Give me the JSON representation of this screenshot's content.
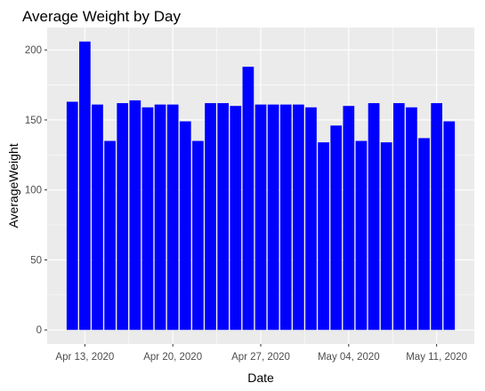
{
  "chart_data": {
    "type": "bar",
    "title": "Average Weight by Day",
    "xlabel": "Date",
    "ylabel": "AverageWeight",
    "x": [
      "2020-04-12",
      "2020-04-13",
      "2020-04-14",
      "2020-04-15",
      "2020-04-16",
      "2020-04-17",
      "2020-04-18",
      "2020-04-19",
      "2020-04-20",
      "2020-04-21",
      "2020-04-22",
      "2020-04-23",
      "2020-04-24",
      "2020-04-25",
      "2020-04-26",
      "2020-04-27",
      "2020-04-28",
      "2020-04-29",
      "2020-04-30",
      "2020-05-01",
      "2020-05-02",
      "2020-05-03",
      "2020-05-04",
      "2020-05-05",
      "2020-05-06",
      "2020-05-07",
      "2020-05-08",
      "2020-05-09",
      "2020-05-10",
      "2020-05-11",
      "2020-05-12"
    ],
    "values": [
      163,
      206,
      161,
      135,
      162,
      164,
      159,
      161,
      161,
      149,
      135,
      162,
      162,
      160,
      188,
      161,
      161,
      161,
      161,
      159,
      134,
      146,
      160,
      135,
      162,
      134,
      162,
      159,
      137,
      162,
      149
    ],
    "x_ticks": [
      {
        "date": "2020-04-13",
        "label": "Apr 13, 2020"
      },
      {
        "date": "2020-04-20",
        "label": "Apr 20, 2020"
      },
      {
        "date": "2020-04-27",
        "label": "Apr 27, 2020"
      },
      {
        "date": "2020-05-04",
        "label": "May 04, 2020"
      },
      {
        "date": "2020-05-11",
        "label": "May 11, 2020"
      }
    ],
    "y_ticks": [
      0,
      50,
      100,
      150,
      200
    ],
    "ylim": [
      -10,
      216
    ],
    "xlim": [
      "2020-04-10",
      "2020-05-14"
    ],
    "grid": true,
    "legend": "none",
    "colors": {
      "bar": "#0000ff",
      "panel": "#ebebeb",
      "grid": "#ffffff"
    }
  }
}
